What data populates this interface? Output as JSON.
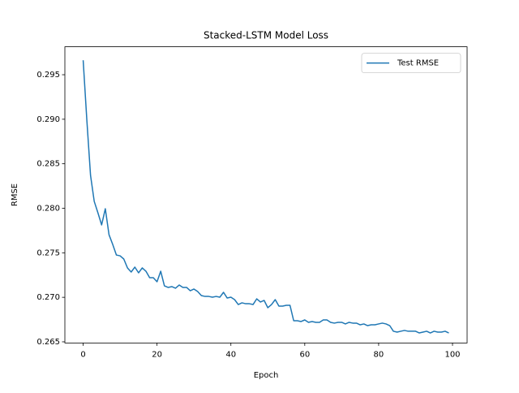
{
  "chart_data": {
    "type": "line",
    "title": "Stacked-LSTM Model Loss",
    "x_label": "Epoch",
    "y_label": "RMSE",
    "x": [
      0,
      1,
      2,
      3,
      4,
      5,
      6,
      7,
      8,
      9,
      10,
      11,
      12,
      13,
      14,
      15,
      16,
      17,
      18,
      19,
      20,
      21,
      22,
      23,
      24,
      25,
      26,
      27,
      28,
      29,
      30,
      31,
      32,
      33,
      34,
      35,
      36,
      37,
      38,
      39,
      40,
      41,
      42,
      43,
      44,
      45,
      46,
      47,
      48,
      49,
      50,
      51,
      52,
      53,
      54,
      55,
      56,
      57,
      58,
      59,
      60,
      61,
      62,
      63,
      64,
      65,
      66,
      67,
      68,
      69,
      70,
      71,
      72,
      73,
      74,
      75,
      76,
      77,
      78,
      79,
      80,
      81,
      82,
      83,
      84,
      85,
      86,
      87,
      88,
      89,
      90,
      91,
      92,
      93,
      94,
      95,
      96,
      97,
      98,
      99
    ],
    "series": [
      {
        "name": "Test RMSE",
        "color": "#1f77b4",
        "values": [
          0.29663,
          0.28989,
          0.28369,
          0.28077,
          0.27949,
          0.27813,
          0.27995,
          0.27703,
          0.27594,
          0.27475,
          0.27466,
          0.2743,
          0.2733,
          0.27284,
          0.27339,
          0.27275,
          0.2733,
          0.27293,
          0.2722,
          0.2722,
          0.27175,
          0.27293,
          0.27129,
          0.27111,
          0.2712,
          0.27102,
          0.27138,
          0.27111,
          0.27111,
          0.27074,
          0.27093,
          0.27065,
          0.2702,
          0.2701,
          0.2701,
          0.27001,
          0.2701,
          0.27001,
          0.27056,
          0.26992,
          0.27001,
          0.26974,
          0.26919,
          0.26938,
          0.26928,
          0.26928,
          0.26919,
          0.26983,
          0.26947,
          0.26965,
          0.26883,
          0.26919,
          0.26974,
          0.26901,
          0.26901,
          0.2691,
          0.2691,
          0.26737,
          0.26737,
          0.26728,
          0.26746,
          0.26719,
          0.26728,
          0.26719,
          0.26719,
          0.26746,
          0.26746,
          0.26719,
          0.2671,
          0.26719,
          0.26719,
          0.26701,
          0.26719,
          0.2671,
          0.2671,
          0.26691,
          0.26701,
          0.26682,
          0.26691,
          0.26691,
          0.26701,
          0.2671,
          0.26701,
          0.26682,
          0.26619,
          0.26609,
          0.26619,
          0.26628,
          0.26619,
          0.26619,
          0.26619,
          0.266,
          0.26609,
          0.26619,
          0.266,
          0.26619,
          0.26609,
          0.26609,
          0.26619,
          0.266
        ]
      }
    ],
    "xlim": [
      -4.95,
      103.95
    ],
    "xticks": [
      0,
      20,
      40,
      60,
      80,
      100
    ],
    "ylim": [
      0.26487,
      0.29814
    ],
    "yticks": [
      0.265,
      {
        "value": 0.27,
        "label": "0.270"
      },
      0.275,
      {
        "value": 0.28,
        "label": "0.280"
      },
      0.285,
      {
        "value": 0.29,
        "label": "0.290"
      },
      0.295
    ],
    "legend": "upper right"
  }
}
